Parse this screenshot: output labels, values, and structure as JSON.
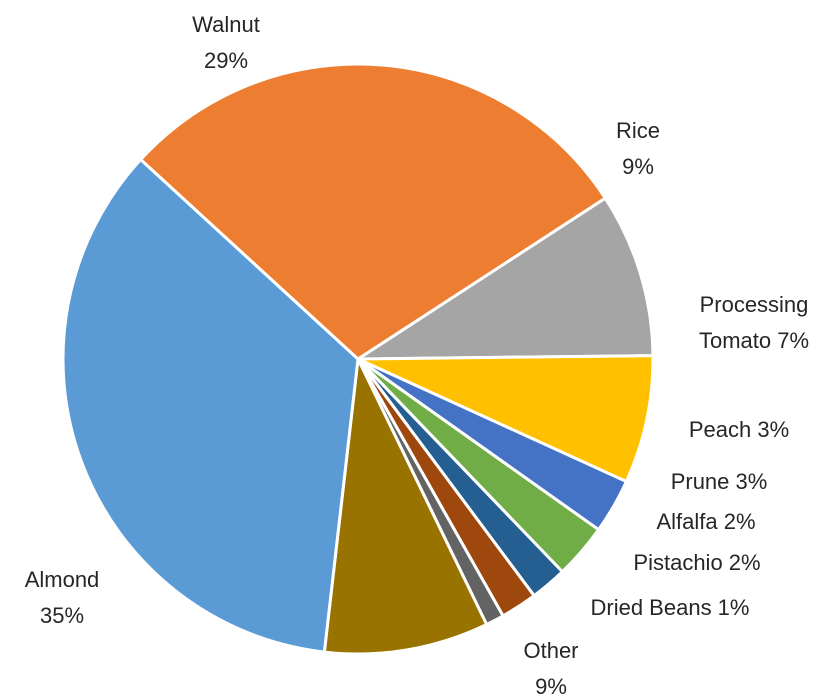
{
  "chart_data": {
    "type": "pie",
    "title": "",
    "start": "top-right",
    "direction": "clockwise",
    "slices": [
      {
        "name": "Rice",
        "value": 9,
        "color": "#A5A5A5",
        "label_lines": [
          "Rice",
          "9%"
        ]
      },
      {
        "name": "Processing Tomato",
        "value": 7,
        "color": "#FFC000",
        "label_lines": [
          "Processing",
          "Tomato 7%"
        ]
      },
      {
        "name": "Peach",
        "value": 3,
        "color": "#4472C4",
        "label_lines": [
          "Peach 3%"
        ]
      },
      {
        "name": "Prune",
        "value": 3,
        "color": "#70AD47",
        "label_lines": [
          "Prune 3%"
        ]
      },
      {
        "name": "Alfalfa",
        "value": 2,
        "color": "#255E91",
        "label_lines": [
          "Alfalfa 2%"
        ]
      },
      {
        "name": "Pistachio",
        "value": 2,
        "color": "#9E480E",
        "label_lines": [
          "Pistachio 2%"
        ]
      },
      {
        "name": "Dried Beans",
        "value": 1,
        "color": "#636363",
        "label_lines": [
          "Dried Beans 1%"
        ]
      },
      {
        "name": "Other",
        "value": 9,
        "color": "#997300",
        "label_lines": [
          "Other",
          "9%"
        ]
      },
      {
        "name": "Almond",
        "value": 35,
        "color": "#5B9BD5",
        "label_lines": [
          "Almond",
          "35%"
        ]
      },
      {
        "name": "Walnut",
        "value": 29,
        "color": "#ED7D31",
        "label_lines": [
          "Walnut",
          "29%"
        ]
      }
    ]
  }
}
